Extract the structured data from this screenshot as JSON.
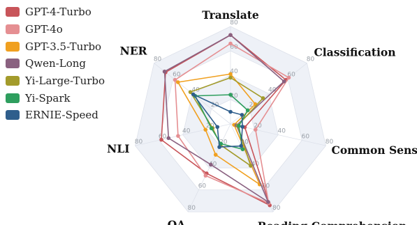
{
  "chart_data": {
    "type": "radar",
    "title": "",
    "axes": [
      "Translate",
      "Classification",
      "Common Sense",
      "Reading Comprehension",
      "QA",
      "NLI",
      "NER"
    ],
    "rmax": 80,
    "ticks": [
      20,
      40,
      60,
      80
    ],
    "legend_position": "top-left",
    "series": [
      {
        "name": "GPT-4-Turbo",
        "color": "#c8555a",
        "values": [
          73,
          58,
          12,
          74,
          45,
          58,
          68
        ]
      },
      {
        "name": "GPT-4o",
        "color": "#e58f92",
        "values": [
          66,
          61,
          21,
          72,
          47,
          44,
          58
        ]
      },
      {
        "name": "GPT-3.5-Turbo",
        "color": "#f0a020",
        "values": [
          41,
          26,
          3,
          55,
          28,
          21,
          55
        ]
      },
      {
        "name": "Qwen-Long",
        "color": "#8a6180",
        "values": [
          73,
          56,
          5,
          71,
          37,
          52,
          69
        ]
      },
      {
        "name": "Yi-Large-Turbo",
        "color": "#a39b2b",
        "values": [
          38,
          34,
          6,
          38,
          19,
          15,
          42
        ]
      },
      {
        "name": "Yi-Spark",
        "color": "#2e9e5e",
        "values": [
          24,
          18,
          7,
          23,
          18,
          16,
          37
        ]
      },
      {
        "name": "ERNIE-Speed",
        "color": "#2f5e8c",
        "values": [
          10,
          12,
          10,
          20,
          21,
          11,
          39
        ]
      }
    ]
  }
}
